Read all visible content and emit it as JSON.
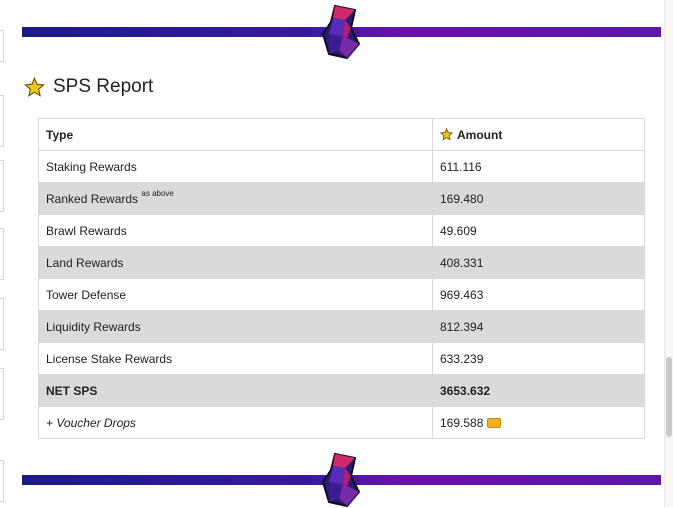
{
  "report": {
    "title": "SPS Report",
    "icon": "star-icon"
  },
  "table": {
    "headers": {
      "type": "Type",
      "amount": "Amount"
    },
    "rows": [
      {
        "type": "Staking Rewards",
        "amount": "611.116"
      },
      {
        "type": "Ranked Rewards",
        "note": "as above",
        "amount": "169.480"
      },
      {
        "type": "Brawl Rewards",
        "amount": "49.609"
      },
      {
        "type": "Land Rewards",
        "amount": "408.331"
      },
      {
        "type": "Tower Defense",
        "amount": "969.463"
      },
      {
        "type": "Liquidity Rewards",
        "amount": "812.394"
      },
      {
        "type": "License Stake Rewards",
        "amount": "633.239"
      },
      {
        "type": "NET SPS",
        "amount": "3653.632"
      },
      {
        "type": "+ Voucher Drops",
        "amount": "169.588",
        "icon": "voucher-icon"
      }
    ]
  },
  "colors": {
    "divider_left": "#1c1a8a",
    "divider_right": "#6b0fa8",
    "shaded_row": "#dadada",
    "star": "#f5c518"
  }
}
